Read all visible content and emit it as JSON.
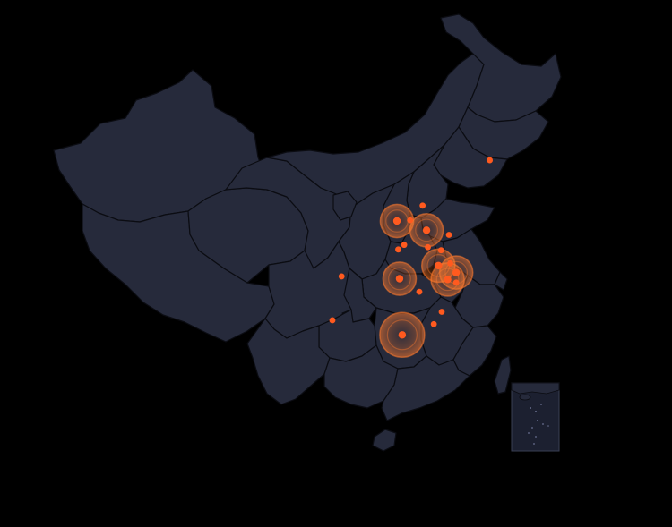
{
  "map": {
    "type": "scatter-map",
    "region": "China",
    "colors": {
      "background": "#000000",
      "land": "#262a3b",
      "border": "#0b0c12",
      "point": "#ff5a1f",
      "ripple": "#ff7a2e"
    },
    "points": [
      {
        "lon": 126.6,
        "lat": 45.8,
        "value": 1,
        "effect": false
      },
      {
        "lon": 116.4,
        "lat": 39.9,
        "value": 1,
        "effect": false
      },
      {
        "lon": 114.5,
        "lat": 38.0,
        "value": 1,
        "effect": false
      },
      {
        "lon": 112.5,
        "lat": 37.9,
        "value": 3,
        "effect": true
      },
      {
        "lon": 117.0,
        "lat": 36.7,
        "value": 3,
        "effect": true
      },
      {
        "lon": 120.4,
        "lat": 36.1,
        "value": 1,
        "effect": false
      },
      {
        "lon": 117.2,
        "lat": 34.5,
        "value": 1,
        "effect": false
      },
      {
        "lon": 113.6,
        "lat": 34.8,
        "value": 1,
        "effect": false
      },
      {
        "lon": 112.7,
        "lat": 34.2,
        "value": 1,
        "effect": false
      },
      {
        "lon": 119.2,
        "lat": 34.1,
        "value": 1,
        "effect": false
      },
      {
        "lon": 118.8,
        "lat": 32.1,
        "value": 3,
        "effect": true
      },
      {
        "lon": 120.6,
        "lat": 32.4,
        "value": 1,
        "effect": false
      },
      {
        "lon": 121.5,
        "lat": 31.2,
        "value": 3,
        "effect": true
      },
      {
        "lon": 112.9,
        "lat": 30.4,
        "value": 3,
        "effect": true
      },
      {
        "lon": 120.2,
        "lat": 30.3,
        "value": 3,
        "effect": true
      },
      {
        "lon": 121.5,
        "lat": 29.9,
        "value": 1,
        "effect": false
      },
      {
        "lon": 104.1,
        "lat": 30.7,
        "value": 1,
        "effect": false
      },
      {
        "lon": 115.9,
        "lat": 28.7,
        "value": 1,
        "effect": false
      },
      {
        "lon": 119.3,
        "lat": 26.1,
        "value": 1,
        "effect": false
      },
      {
        "lon": 118.1,
        "lat": 24.5,
        "value": 1,
        "effect": false
      },
      {
        "lon": 102.7,
        "lat": 25.0,
        "value": 1,
        "effect": false
      },
      {
        "lon": 113.3,
        "lat": 23.1,
        "value": 5,
        "effect": true
      }
    ]
  }
}
